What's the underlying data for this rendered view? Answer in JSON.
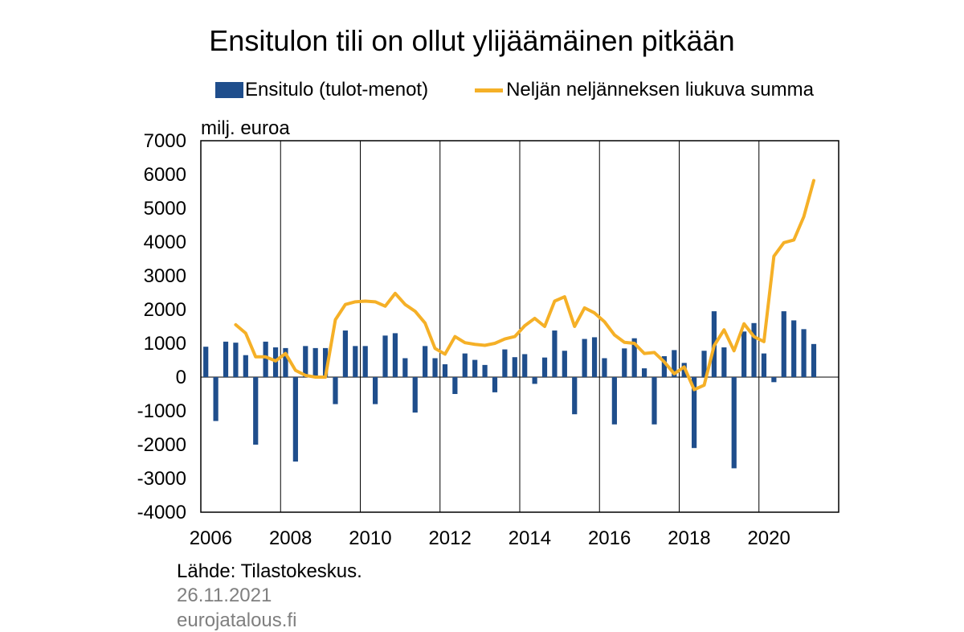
{
  "chart_data": {
    "type": "bar+line",
    "title": "Ensitulon tili on ollut ylijäämäinen pitkään",
    "ylabel": "milj. euroa",
    "ylim": [
      -4000,
      7000
    ],
    "yticks": [
      7000,
      6000,
      5000,
      4000,
      3000,
      2000,
      1000,
      0,
      -1000,
      -2000,
      -3000,
      -4000
    ],
    "xticks": [
      "2006",
      "2008",
      "2010",
      "2012",
      "2014",
      "2016",
      "2018",
      "2020"
    ],
    "grid": "vertical",
    "start_year": 2006,
    "quarters_per_year": 4,
    "series": [
      {
        "name": "Ensitulo (tulot-menot)",
        "kind": "bar",
        "color": "#1f4e8c",
        "values": [
          900,
          -1300,
          1050,
          1020,
          650,
          -2000,
          1050,
          880,
          860,
          -2500,
          920,
          860,
          860,
          -800,
          1380,
          920,
          920,
          -800,
          1230,
          1300,
          560,
          -1050,
          920,
          560,
          380,
          -500,
          700,
          510,
          360,
          -450,
          820,
          590,
          680,
          -200,
          580,
          1380,
          780,
          -1100,
          1130,
          1180,
          560,
          -1400,
          850,
          1150,
          260,
          -1400,
          620,
          800,
          420,
          -2100,
          780,
          1950,
          880,
          -2700,
          1350,
          1600,
          700,
          -150,
          1950,
          1680,
          1420,
          980
        ]
      },
      {
        "name": "Neljän neljänneksen liukuva summa",
        "kind": "line",
        "color": "#f5b027",
        "start_index": 3,
        "values": [
          1550,
          1300,
          600,
          600,
          480,
          700,
          200,
          50,
          0,
          0,
          1700,
          2150,
          2230,
          2250,
          2230,
          2100,
          2480,
          2150,
          1950,
          1600,
          850,
          680,
          1200,
          1020,
          970,
          940,
          1000,
          1130,
          1200,
          1520,
          1740,
          1500,
          2250,
          2380,
          1500,
          2050,
          1900,
          1640,
          1250,
          1030,
          1000,
          700,
          730,
          450,
          100,
          300,
          -370,
          -240,
          930,
          1400,
          780,
          1580,
          1200,
          1050,
          3580,
          3980,
          4060,
          4750,
          5820
        ]
      }
    ]
  },
  "footer": {
    "source": "Lähde: Tilastokeskus.",
    "date": "26.11.2021",
    "site": "eurojatalous.fi"
  }
}
